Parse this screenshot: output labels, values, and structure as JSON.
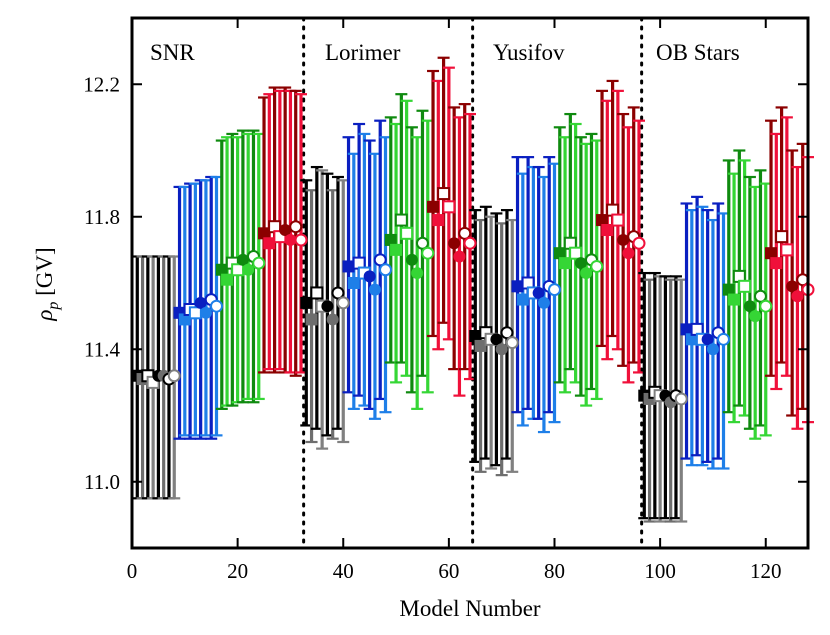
{
  "chart_data": {
    "type": "scatter",
    "subtype": "errorbar",
    "xlabel": "Model Number",
    "ylabel_main": "ρ",
    "ylabel_sub": "p",
    "ylabel_unit": " [GV]",
    "xlim": [
      0,
      128
    ],
    "ylim": [
      10.8,
      12.4
    ],
    "x_ticks": [
      0,
      20,
      40,
      60,
      80,
      100,
      120
    ],
    "y_ticks": [
      11.0,
      11.4,
      11.8,
      12.2
    ],
    "y_tick_labels": [
      "11.0",
      "11.4",
      "11.8",
      "12.2"
    ],
    "regions": [
      {
        "name": "SNR",
        "x_start": 0,
        "x_end": 32
      },
      {
        "name": "Lorimer",
        "x_start": 32,
        "x_end": 64
      },
      {
        "name": "Yusifov",
        "x_start": 64,
        "x_end": 96
      },
      {
        "name": "OB Stars",
        "x_start": 96,
        "x_end": 128
      }
    ],
    "divider_x": [
      32.5,
      64.5,
      96.5
    ],
    "group_colors": [
      "#000000",
      "#1a2fd0",
      "#22b422",
      "#dc143c"
    ],
    "color_shades": {
      "#000000": [
        "#000000",
        "#6e6e6e",
        "#000000",
        "#808080"
      ],
      "#1a2fd0": [
        "#0a1fc0",
        "#1e7fe8",
        "#0a1fc0",
        "#1e7fe8"
      ],
      "#22b422": [
        "#0f8a0f",
        "#35d635",
        "#0f8a0f",
        "#35d635"
      ],
      "#dc143c": [
        "#8b0000",
        "#f0103a",
        "#8b0000",
        "#f0103a"
      ]
    },
    "marker_order": [
      "filled-square",
      "open-square",
      "filled-circle",
      "open-circle"
    ],
    "groups": [
      {
        "region": 0,
        "color_index": 0,
        "start": 1,
        "values": [
          11.32,
          11.31,
          11.32,
          11.3,
          11.32,
          11.32,
          11.31,
          11.32
        ],
        "lower": [
          10.95,
          10.95,
          10.95,
          10.95,
          10.95,
          10.95,
          10.95,
          10.95
        ],
        "upper": [
          11.68,
          11.68,
          11.68,
          11.68,
          11.68,
          11.68,
          11.68,
          11.68
        ]
      },
      {
        "region": 0,
        "color_index": 1,
        "start": 9,
        "values": [
          11.51,
          11.49,
          11.52,
          11.51,
          11.54,
          11.51,
          11.55,
          11.53
        ],
        "lower": [
          11.13,
          11.14,
          11.13,
          11.14,
          11.13,
          11.14,
          11.13,
          11.14
        ],
        "upper": [
          11.89,
          11.89,
          11.9,
          11.9,
          11.91,
          11.91,
          11.92,
          11.92
        ]
      },
      {
        "region": 0,
        "color_index": 2,
        "start": 17,
        "values": [
          11.64,
          11.61,
          11.66,
          11.64,
          11.67,
          11.64,
          11.68,
          11.66
        ],
        "lower": [
          11.22,
          11.23,
          11.23,
          11.24,
          11.24,
          11.25,
          11.24,
          11.25
        ],
        "upper": [
          12.03,
          12.04,
          12.05,
          12.04,
          12.06,
          12.05,
          12.06,
          12.05
        ]
      },
      {
        "region": 0,
        "color_index": 3,
        "start": 25,
        "values": [
          11.75,
          11.72,
          11.77,
          11.74,
          11.76,
          11.73,
          11.77,
          11.73
        ],
        "lower": [
          11.33,
          11.34,
          11.33,
          11.34,
          11.33,
          11.33,
          11.32,
          11.33
        ],
        "upper": [
          12.16,
          12.17,
          12.19,
          12.18,
          12.19,
          12.18,
          12.18,
          12.17
        ]
      },
      {
        "region": 1,
        "color_index": 0,
        "start": 33,
        "values": [
          11.54,
          11.49,
          11.57,
          11.53,
          11.53,
          11.49,
          11.57,
          11.54
        ],
        "lower": [
          11.17,
          11.12,
          11.16,
          11.1,
          11.14,
          11.13,
          11.16,
          11.12
        ],
        "upper": [
          11.91,
          11.88,
          11.95,
          11.94,
          11.93,
          11.88,
          11.92,
          11.91
        ]
      },
      {
        "region": 1,
        "color_index": 1,
        "start": 41,
        "values": [
          11.65,
          11.6,
          11.66,
          11.63,
          11.62,
          11.58,
          11.67,
          11.64
        ],
        "lower": [
          11.27,
          11.22,
          11.26,
          11.23,
          11.22,
          11.19,
          11.25,
          11.21
        ],
        "upper": [
          12.04,
          11.99,
          12.08,
          12.05,
          12.03,
          11.99,
          12.09,
          12.04
        ]
      },
      {
        "region": 1,
        "color_index": 2,
        "start": 49,
        "values": [
          11.73,
          11.7,
          11.79,
          11.75,
          11.67,
          11.63,
          11.72,
          11.69
        ],
        "lower": [
          11.36,
          11.3,
          11.36,
          11.32,
          11.27,
          11.22,
          11.32,
          11.27
        ],
        "upper": [
          12.1,
          12.08,
          12.17,
          12.15,
          12.07,
          12.04,
          12.12,
          12.09
        ]
      },
      {
        "region": 1,
        "color_index": 3,
        "start": 57,
        "values": [
          11.83,
          11.79,
          11.87,
          11.83,
          11.72,
          11.68,
          11.75,
          11.72
        ],
        "lower": [
          11.44,
          11.4,
          11.48,
          11.43,
          11.34,
          11.26,
          11.34,
          11.31
        ],
        "upper": [
          12.24,
          12.21,
          12.28,
          12.25,
          12.13,
          12.1,
          12.14,
          12.11
        ]
      },
      {
        "region": 2,
        "color_index": 0,
        "start": 65,
        "values": [
          11.44,
          11.41,
          11.45,
          11.43,
          11.43,
          11.4,
          11.45,
          11.42
        ],
        "lower": [
          11.06,
          11.03,
          11.07,
          11.04,
          11.05,
          11.02,
          11.07,
          11.03
        ],
        "upper": [
          11.82,
          11.79,
          11.83,
          11.8,
          11.81,
          11.78,
          11.82,
          11.79
        ]
      },
      {
        "region": 2,
        "color_index": 1,
        "start": 73,
        "values": [
          11.59,
          11.55,
          11.6,
          11.57,
          11.57,
          11.54,
          11.59,
          11.58
        ],
        "lower": [
          11.21,
          11.17,
          11.22,
          11.19,
          11.19,
          11.15,
          11.21,
          11.18
        ],
        "upper": [
          11.98,
          11.93,
          11.98,
          11.95,
          11.95,
          11.92,
          11.98,
          11.96
        ]
      },
      {
        "region": 2,
        "color_index": 2,
        "start": 81,
        "values": [
          11.69,
          11.66,
          11.72,
          11.69,
          11.66,
          11.63,
          11.67,
          11.65
        ],
        "lower": [
          11.3,
          11.27,
          11.34,
          11.3,
          11.26,
          11.23,
          11.28,
          11.25
        ],
        "upper": [
          12.07,
          12.04,
          12.11,
          12.08,
          12.04,
          12.02,
          12.05,
          12.03
        ]
      },
      {
        "region": 2,
        "color_index": 3,
        "start": 89,
        "values": [
          11.79,
          11.76,
          11.82,
          11.79,
          11.73,
          11.69,
          11.74,
          11.72
        ],
        "lower": [
          11.41,
          11.37,
          11.44,
          11.4,
          11.35,
          11.3,
          11.36,
          11.33
        ],
        "upper": [
          12.18,
          12.15,
          12.21,
          12.18,
          12.11,
          12.07,
          12.13,
          12.09
        ]
      },
      {
        "region": 3,
        "color_index": 0,
        "start": 97,
        "values": [
          11.26,
          11.25,
          11.27,
          11.26,
          11.26,
          11.24,
          11.26,
          11.25
        ],
        "lower": [
          10.89,
          10.88,
          10.89,
          10.88,
          10.89,
          10.88,
          10.89,
          10.88
        ],
        "upper": [
          11.63,
          11.61,
          11.63,
          11.62,
          11.62,
          11.61,
          11.62,
          11.61
        ]
      },
      {
        "region": 3,
        "color_index": 1,
        "start": 105,
        "values": [
          11.46,
          11.43,
          11.46,
          11.43,
          11.43,
          11.4,
          11.45,
          11.43
        ],
        "lower": [
          11.07,
          11.05,
          11.08,
          11.05,
          11.06,
          11.04,
          11.07,
          11.04
        ],
        "upper": [
          11.84,
          11.82,
          11.86,
          11.83,
          11.82,
          11.79,
          11.84,
          11.81
        ]
      },
      {
        "region": 3,
        "color_index": 2,
        "start": 113,
        "values": [
          11.58,
          11.55,
          11.62,
          11.59,
          11.53,
          11.5,
          11.56,
          11.53
        ],
        "lower": [
          11.21,
          11.18,
          11.23,
          11.2,
          11.16,
          11.13,
          11.17,
          11.14
        ],
        "upper": [
          11.97,
          11.93,
          12.0,
          11.97,
          11.92,
          11.89,
          11.94,
          11.9
        ]
      },
      {
        "region": 3,
        "color_index": 3,
        "start": 121,
        "values": [
          11.69,
          11.66,
          11.74,
          11.7,
          11.59,
          11.56,
          11.61,
          11.58
        ],
        "lower": [
          11.32,
          11.28,
          11.36,
          11.32,
          11.2,
          11.16,
          11.22,
          11.18
        ],
        "upper": [
          12.09,
          12.05,
          12.13,
          12.1,
          12.0,
          11.95,
          12.02,
          11.98
        ]
      }
    ]
  }
}
